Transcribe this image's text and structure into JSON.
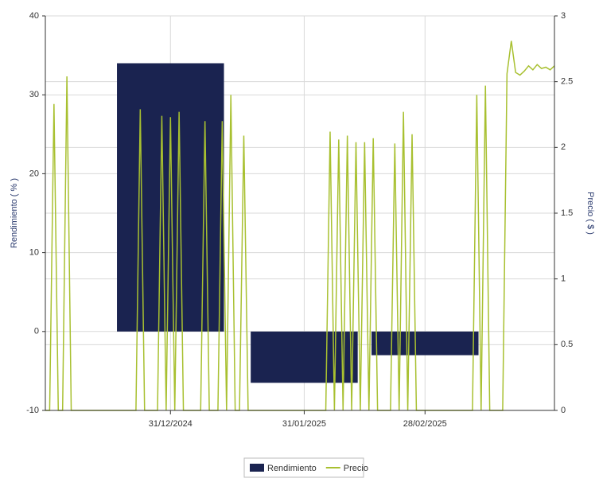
{
  "chart_data": {
    "type": "bar-line",
    "y_label": "Rendimiento ( % )",
    "y2_label": "Precio ( $ )",
    "xlim": [
      "2024-12-02",
      "2025-03-30"
    ],
    "xticks": [
      {
        "value": "2024-12-31",
        "label": "31/12/2024"
      },
      {
        "value": "2025-01-31",
        "label": "31/01/2025"
      },
      {
        "value": "2025-02-28",
        "label": "28/02/2025"
      }
    ],
    "ylim": [
      -10,
      40
    ],
    "yticks": [
      -10,
      0,
      10,
      20,
      30,
      40
    ],
    "y2lim": [
      0,
      3
    ],
    "y2ticks": [
      0,
      0.5,
      1,
      1.5,
      2,
      2.5,
      3
    ],
    "grid": true,
    "legend": "bottom",
    "series": [
      {
        "name": "Rendimiento",
        "type": "bar",
        "color": "#1a2350",
        "x": [
          "2024-12-31",
          "2025-01-31",
          "2025-02-28"
        ],
        "values": [
          34,
          -6.5,
          -3
        ]
      },
      {
        "name": "Precio",
        "type": "line",
        "axis": "y2",
        "color": "#a8c030",
        "x": [
          "2024-12-02",
          "2024-12-03",
          "2024-12-04",
          "2024-12-05",
          "2024-12-06",
          "2024-12-07",
          "2024-12-08",
          "2024-12-23",
          "2024-12-24",
          "2024-12-25",
          "2024-12-28",
          "2024-12-29",
          "2024-12-30",
          "2024-12-31",
          "2025-01-01",
          "2025-01-02",
          "2025-01-03",
          "2025-01-07",
          "2025-01-08",
          "2025-01-09",
          "2025-01-11",
          "2025-01-12",
          "2025-01-13",
          "2025-01-14",
          "2025-01-15",
          "2025-01-16",
          "2025-01-17",
          "2025-01-18",
          "2025-02-05",
          "2025-02-06",
          "2025-02-07",
          "2025-02-08",
          "2025-02-09",
          "2025-02-10",
          "2025-02-11",
          "2025-02-12",
          "2025-02-13",
          "2025-02-14",
          "2025-02-15",
          "2025-02-16",
          "2025-02-17",
          "2025-02-20",
          "2025-02-21",
          "2025-02-22",
          "2025-02-23",
          "2025-02-24",
          "2025-02-25",
          "2025-02-26",
          "2025-03-11",
          "2025-03-12",
          "2025-03-13",
          "2025-03-14",
          "2025-03-15",
          "2025-03-18",
          "2025-03-19",
          "2025-03-20",
          "2025-03-21",
          "2025-03-22",
          "2025-03-23",
          "2025-03-24",
          "2025-03-25",
          "2025-03-26",
          "2025-03-27",
          "2025-03-28",
          "2025-03-29",
          "2025-03-30"
        ],
        "values": [
          0,
          0,
          2.33,
          0,
          0,
          2.54,
          0,
          0,
          2.29,
          0,
          0,
          2.24,
          0,
          2.23,
          0,
          2.27,
          0,
          0,
          2.2,
          0,
          0,
          2.2,
          0,
          2.4,
          0,
          0,
          2.09,
          0,
          0,
          2.12,
          0,
          2.06,
          0,
          2.09,
          0,
          2.04,
          0,
          2.04,
          0,
          2.07,
          0,
          0,
          2.03,
          0,
          2.27,
          0,
          2.1,
          0,
          0,
          2.4,
          0,
          2.47,
          0,
          0,
          2.56,
          2.81,
          2.57,
          2.55,
          2.58,
          2.62,
          2.59,
          2.63,
          2.6,
          2.61,
          2.59,
          2.62
        ]
      }
    ]
  }
}
